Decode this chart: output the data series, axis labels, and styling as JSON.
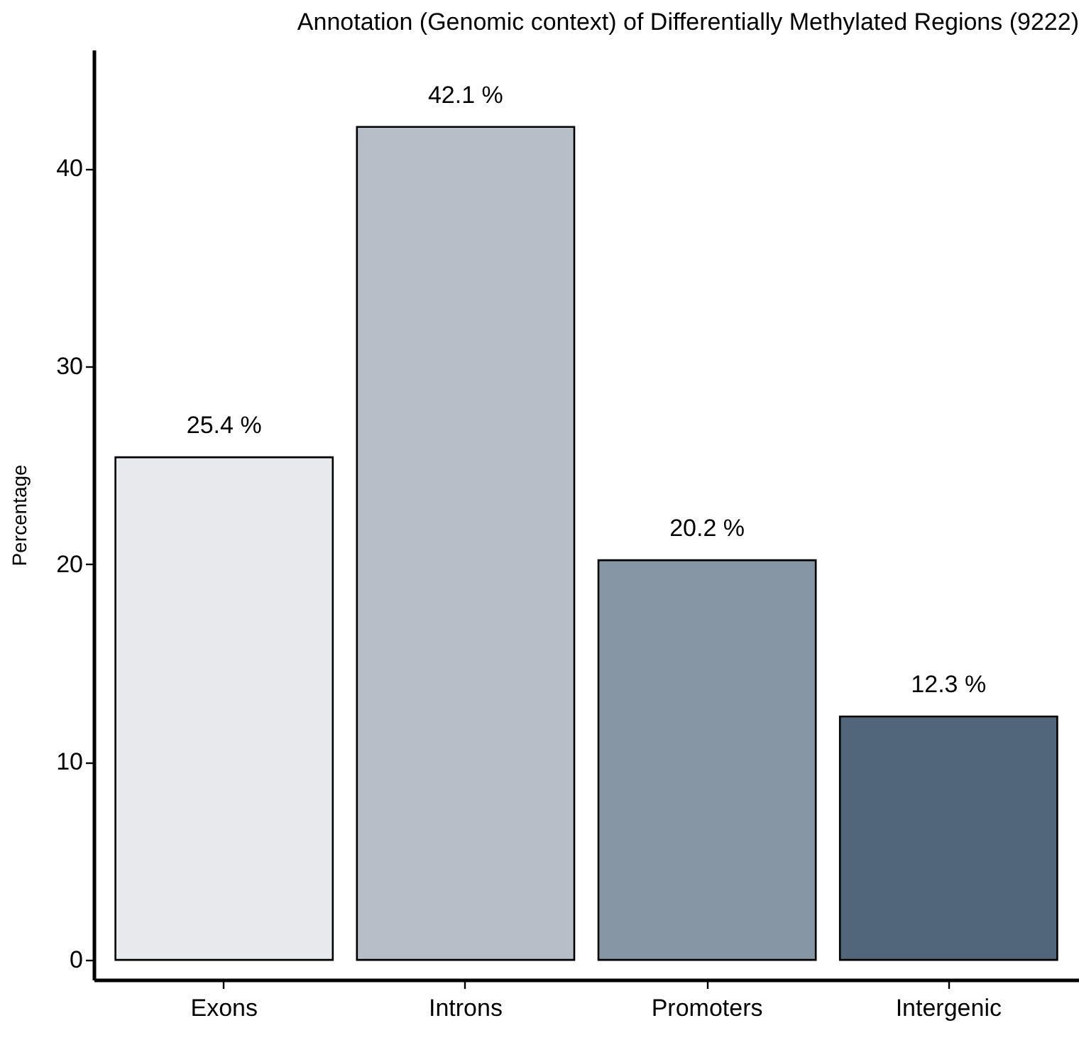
{
  "chart_data": {
    "type": "bar",
    "title": "Annotation (Genomic context) of Differentially Methylated Regions (9222)",
    "ylabel": "Percentage",
    "categories": [
      "Exons",
      "Introns",
      "Promoters",
      "Intergenic"
    ],
    "values": [
      25.4,
      42.1,
      20.2,
      12.3
    ],
    "colors": [
      "#e8e9ed",
      "#b7bec8",
      "#8796a4",
      "#52667a"
    ],
    "value_labels": [
      "25.4 %",
      "42.1 %",
      "20.2 %",
      "12.3 %"
    ],
    "ylim": [
      -1,
      46
    ],
    "yticks": [
      0,
      10,
      20,
      30,
      40
    ],
    "grid": false
  }
}
